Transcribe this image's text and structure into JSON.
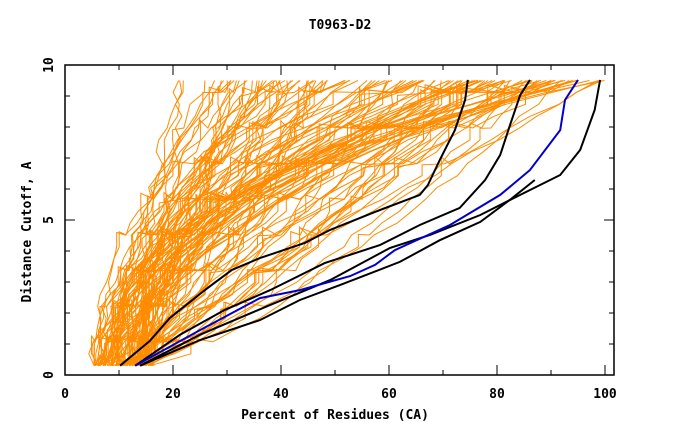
{
  "chart_data": {
    "type": "line",
    "title": "T0963-D2",
    "xlabel": "Percent of Residues (CA)",
    "ylabel": "Distance Cutoff, A",
    "xlim": [
      0,
      100
    ],
    "ylim": [
      0,
      10
    ],
    "x_ticks": [
      "0",
      "20",
      "40",
      "60",
      "80",
      "100"
    ],
    "y_ticks": [
      "0",
      "5",
      "10"
    ],
    "x_tick_values": [
      0,
      20,
      40,
      60,
      80,
      100
    ],
    "y_tick_values": [
      0,
      5,
      10
    ],
    "grid": false,
    "legend": "none",
    "colors": {
      "background_models": "#ff8c00",
      "highlight_black": "#000000",
      "highlight_blue": "#0000cc",
      "axis": "#000000"
    },
    "background_series_note": "many orange model curves spanning x 5-100, y 0.3-9.5",
    "background_series": {
      "count": 120,
      "x_start_range": [
        5,
        16
      ],
      "x_end_range": [
        21,
        100
      ],
      "y_min": 0.3,
      "y_max": 9.5
    },
    "series": [
      {
        "name": "black-1",
        "color": "#000000",
        "x": [
          10.2,
          15.7,
          19.4,
          25.9,
          30.9,
          36.1,
          44.4,
          49.1,
          57.4,
          65.7,
          67.2,
          69.4,
          72.2,
          74.1,
          74.6
        ],
        "y": [
          0.3,
          1.1,
          1.84,
          2.74,
          3.39,
          3.77,
          4.26,
          4.68,
          5.26,
          5.81,
          6.13,
          6.94,
          7.9,
          8.87,
          9.52
        ]
      },
      {
        "name": "black-2",
        "color": "#000000",
        "x": [
          13.0,
          21.3,
          29.6,
          38.0,
          48.1,
          58.3,
          65.7,
          73.1,
          77.8,
          80.6,
          82.4,
          84.3,
          86.1
        ],
        "y": [
          0.3,
          1.3,
          2.1,
          2.74,
          3.61,
          4.19,
          4.84,
          5.39,
          6.29,
          7.1,
          8.06,
          9.03,
          9.52
        ]
      },
      {
        "name": "black-3",
        "color": "#000000",
        "x": [
          13.9,
          25.0,
          38.0,
          49.1,
          60.2,
          67.6,
          76.9,
          84.3,
          91.7,
          95.4,
          98.1,
          99.1
        ],
        "y": [
          0.3,
          1.3,
          2.26,
          3.06,
          4.1,
          4.52,
          5.16,
          5.81,
          6.45,
          7.26,
          8.55,
          9.52
        ]
      },
      {
        "name": "black-4",
        "color": "#000000",
        "x": [
          13.9,
          25.0,
          36.1,
          43.5,
          50.9,
          62.0,
          69.4,
          76.9,
          82.4,
          87.0
        ],
        "y": [
          0.3,
          1.13,
          1.77,
          2.42,
          2.9,
          3.65,
          4.35,
          4.94,
          5.65,
          6.29
        ]
      },
      {
        "name": "blue",
        "color": "#0000cc",
        "x": [
          13.0,
          25.0,
          36.1,
          43.5,
          52.8,
          57.4,
          61.1,
          71.3,
          80.6,
          86.1,
          91.7,
          92.6,
          95.0
        ],
        "y": [
          0.3,
          1.45,
          2.48,
          2.74,
          3.19,
          3.55,
          4.03,
          4.84,
          5.81,
          6.61,
          7.9,
          8.87,
          9.52
        ]
      }
    ]
  }
}
